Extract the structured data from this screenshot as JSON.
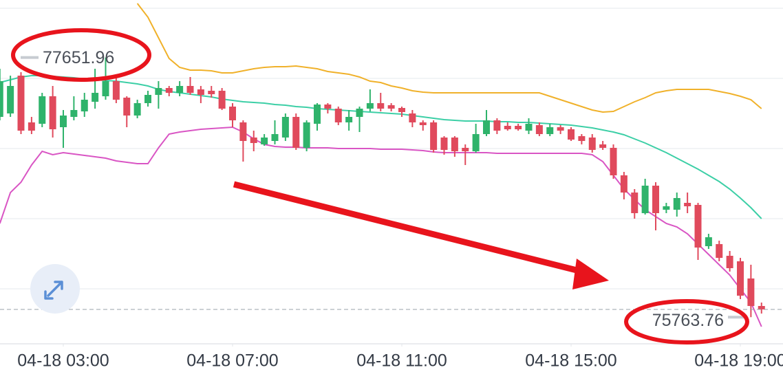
{
  "chart_data": {
    "type": "candlestick",
    "ylim": [
      75570,
      78070
    ],
    "xlim": [
      0,
      72
    ],
    "xticks": [
      {
        "value": 6,
        "label": "04-18 03:00"
      },
      {
        "value": 22,
        "label": "04-18 07:00"
      },
      {
        "value": 38,
        "label": "04-18 11:00"
      },
      {
        "value": 54,
        "label": "04-18 15:00"
      },
      {
        "value": 70,
        "label": "04-18 19:00"
      }
    ],
    "up_color": "#2fb36b",
    "down_color": "#e04a5c",
    "open": [
      77220,
      77245,
      77520,
      77180,
      77170,
      77370,
      77145,
      77220,
      77260,
      77330,
      77370,
      77480,
      77360,
      77230,
      77320,
      77380,
      77430,
      77395,
      77445,
      77420,
      77410,
      77410,
      77295,
      77180,
      77070,
      77020,
      77045,
      77070,
      77220,
      76995,
      77170,
      77310,
      77280,
      77180,
      77220,
      77280,
      77320,
      77305,
      77285,
      77245,
      77180,
      77180,
      77070,
      77070,
      76995,
      76970,
      77095,
      77195,
      77155,
      77155,
      77120,
      77160,
      77095,
      77145,
      77130,
      77080,
      77070,
      77020,
      76995,
      76795,
      76670,
      76520,
      76720,
      76545,
      76545,
      76595,
      76580,
      76280,
      76295,
      76210,
      76170,
      76045,
      75845
    ],
    "high": [
      77570,
      77520,
      77545,
      77220,
      77395,
      77445,
      77270,
      77370,
      77395,
      77570,
      77651.96,
      77510,
      77370,
      77345,
      77410,
      77480,
      77445,
      77480,
      77510,
      77445,
      77445,
      77430,
      77320,
      77195,
      77120,
      77095,
      77195,
      77245,
      77245,
      77195,
      77320,
      77320,
      77295,
      77270,
      77295,
      77420,
      77395,
      77320,
      77295,
      77270,
      77195,
      77195,
      77080,
      77080,
      77020,
      77170,
      77270,
      77210,
      77180,
      77170,
      77210,
      77180,
      77170,
      77160,
      77145,
      77095,
      77095,
      77045,
      77020,
      76820,
      76695,
      76770,
      76745,
      76595,
      76670,
      76670,
      76595,
      76370,
      76320,
      76245,
      76195,
      76145,
      75870
    ],
    "low": [
      77195,
      77220,
      77095,
      77095,
      77145,
      77070,
      76995,
      77195,
      77220,
      77280,
      77345,
      77320,
      77145,
      77210,
      77295,
      77280,
      77370,
      77370,
      77380,
      77320,
      77360,
      77270,
      77145,
      76895,
      76970,
      77010,
      77020,
      77045,
      76980,
      76970,
      77120,
      77245,
      77160,
      77120,
      77110,
      77260,
      77260,
      77260,
      77220,
      77145,
      77120,
      76960,
      76945,
      76930,
      76870,
      76960,
      77080,
      77095,
      77120,
      77120,
      77095,
      77080,
      77080,
      77095,
      77045,
      77020,
      76960,
      76980,
      76770,
      76620,
      76480,
      76510,
      76395,
      76520,
      76495,
      76520,
      76180,
      76260,
      76170,
      76095,
      75895,
      75763.76,
      75790
    ],
    "close": [
      77480,
      77445,
      77120,
      77120,
      77370,
      77130,
      77230,
      77270,
      77345,
      77395,
      77480,
      77345,
      77230,
      77320,
      77380,
      77430,
      77395,
      77445,
      77395,
      77380,
      77385,
      77280,
      77195,
      77045,
      77030,
      77070,
      77095,
      77220,
      76995,
      77180,
      77310,
      77280,
      77180,
      77220,
      77280,
      77320,
      77280,
      77280,
      77255,
      77180,
      77160,
      76980,
      76980,
      76970,
      76970,
      77095,
      77195,
      77120,
      77130,
      77130,
      77170,
      77095,
      77145,
      77120,
      77055,
      77045,
      76980,
      76995,
      76795,
      76670,
      76520,
      76720,
      76520,
      76570,
      76630,
      76570,
      76270,
      76345,
      76195,
      76120,
      75920,
      75845,
      75820
    ],
    "lines": [
      {
        "color": "#f0b12a",
        "values": [
          null,
          null,
          null,
          null,
          null,
          null,
          null,
          null,
          null,
          null,
          null,
          null,
          null,
          78045,
          77945,
          77795,
          77645,
          77580,
          77560,
          77560,
          77555,
          77540,
          77540,
          77555,
          77570,
          77580,
          77585,
          77585,
          77590,
          77580,
          77570,
          77550,
          77540,
          77530,
          77510,
          77480,
          77470,
          77445,
          77430,
          77410,
          77400,
          77395,
          77395,
          77395,
          77395,
          77395,
          77395,
          77395,
          77395,
          77395,
          77395,
          77395,
          77370,
          77345,
          77320,
          77295,
          77270,
          77255,
          77260,
          77295,
          77330,
          77360,
          77395,
          77410,
          77420,
          77420,
          77420,
          77420,
          77405,
          77390,
          77370,
          77345,
          77280
        ]
      },
      {
        "color": "#3ccfa6",
        "values": [
          77470,
          77490,
          77510,
          77520,
          77520,
          77515,
          77510,
          77505,
          77495,
          77490,
          77485,
          77480,
          77470,
          77460,
          77445,
          77420,
          77405,
          77395,
          77385,
          77375,
          77365,
          77350,
          77340,
          77330,
          77325,
          77320,
          77310,
          77305,
          77295,
          77290,
          77280,
          77275,
          77270,
          77265,
          77260,
          77255,
          77250,
          77245,
          77240,
          77230,
          77220,
          77210,
          77200,
          77195,
          77190,
          77190,
          77190,
          77185,
          77185,
          77180,
          77180,
          77175,
          77170,
          77165,
          77160,
          77150,
          77140,
          77125,
          77110,
          77090,
          77060,
          77030,
          76995,
          76960,
          76920,
          76880,
          76840,
          76795,
          76750,
          76695,
          76630,
          76560,
          76480
        ]
      },
      {
        "color": "#d955c4",
        "values": [
          76445,
          76670,
          76745,
          76870,
          76970,
          76945,
          76960,
          76950,
          76940,
          76930,
          76920,
          76900,
          76890,
          76880,
          76880,
          76995,
          77095,
          77110,
          77120,
          77130,
          77135,
          77140,
          77145,
          77110,
          77060,
          77020,
          77005,
          77000,
          77000,
          76995,
          76995,
          76995,
          76990,
          76990,
          76990,
          76990,
          76985,
          76985,
          76985,
          76980,
          76975,
          76965,
          76960,
          76960,
          76960,
          76960,
          76960,
          76955,
          76955,
          76955,
          76955,
          76955,
          76955,
          76955,
          76955,
          76955,
          76945,
          76895,
          76795,
          76695,
          76620,
          76545,
          76495,
          76445,
          76420,
          76370,
          76295,
          76220,
          76145,
          76070,
          75970,
          75870,
          75695
        ]
      }
    ]
  }
}
